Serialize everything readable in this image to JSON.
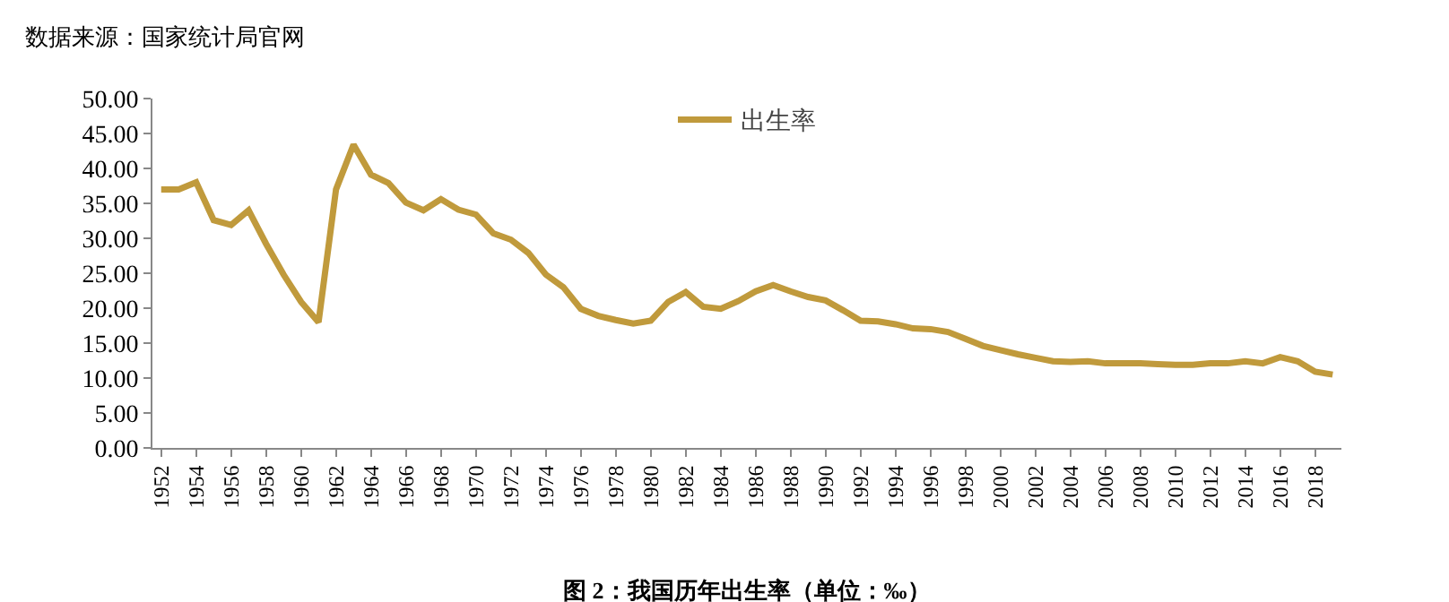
{
  "chart_data": {
    "type": "line",
    "title": "图 2：我国历年出生率（单位：‰）",
    "annotations": [
      "数据来源：国家统计局官网"
    ],
    "categories": [
      "1952",
      null,
      "1954",
      null,
      "1956",
      null,
      "1958",
      null,
      "1960",
      null,
      "1962",
      null,
      "1964",
      null,
      "1966",
      null,
      "1968",
      null,
      "1970",
      null,
      "1972",
      null,
      "1974",
      null,
      "1976",
      null,
      "1978",
      null,
      "1980",
      null,
      "1982",
      null,
      "1984",
      null,
      "1986",
      null,
      "1988",
      null,
      "1990",
      null,
      "1992",
      null,
      "1994",
      null,
      "1996",
      null,
      "1998",
      null,
      "2000",
      null,
      "2002",
      null,
      "2004",
      null,
      "2006",
      null,
      "2008",
      null,
      "2010",
      null,
      "2012",
      null,
      "2014",
      null,
      "2016",
      null,
      "2018",
      null
    ],
    "series": [
      {
        "name": "出生率",
        "color": "#c09a3c",
        "values": [
          37.0,
          37.0,
          38.0,
          32.6,
          31.9,
          34.0,
          29.2,
          24.8,
          20.9,
          18.0,
          37.0,
          43.4,
          39.1,
          37.9,
          35.1,
          34.0,
          35.6,
          34.1,
          33.4,
          30.7,
          29.8,
          27.9,
          24.8,
          23.0,
          19.9,
          18.9,
          18.3,
          17.8,
          18.2,
          20.9,
          22.3,
          20.2,
          19.9,
          21.0,
          22.4,
          23.3,
          22.4,
          21.6,
          21.1,
          19.7,
          18.2,
          18.1,
          17.7,
          17.1,
          17.0,
          16.6,
          15.6,
          14.6,
          14.0,
          13.4,
          12.9,
          12.4,
          12.3,
          12.4,
          12.1,
          12.1,
          12.1,
          12.0,
          11.9,
          11.9,
          12.1,
          12.1,
          12.4,
          12.1,
          13.0,
          12.4,
          10.9,
          10.5
        ]
      }
    ],
    "ylim": [
      0,
      50
    ],
    "yticks": [
      {
        "value": 0,
        "label": "0.00"
      },
      {
        "value": 5,
        "label": "5.00"
      },
      {
        "value": 10,
        "label": "10.00"
      },
      {
        "value": 15,
        "label": "15.00"
      },
      {
        "value": 20,
        "label": "20.00"
      },
      {
        "value": 25,
        "label": "25.00"
      },
      {
        "value": 30,
        "label": "30.00"
      },
      {
        "value": 35,
        "label": "35.00"
      },
      {
        "value": 40,
        "label": "40.00"
      },
      {
        "value": 45,
        "label": "45.00"
      },
      {
        "value": 50,
        "label": "50.00"
      }
    ],
    "legend": "top",
    "marker": "none",
    "line_style": "solid"
  }
}
